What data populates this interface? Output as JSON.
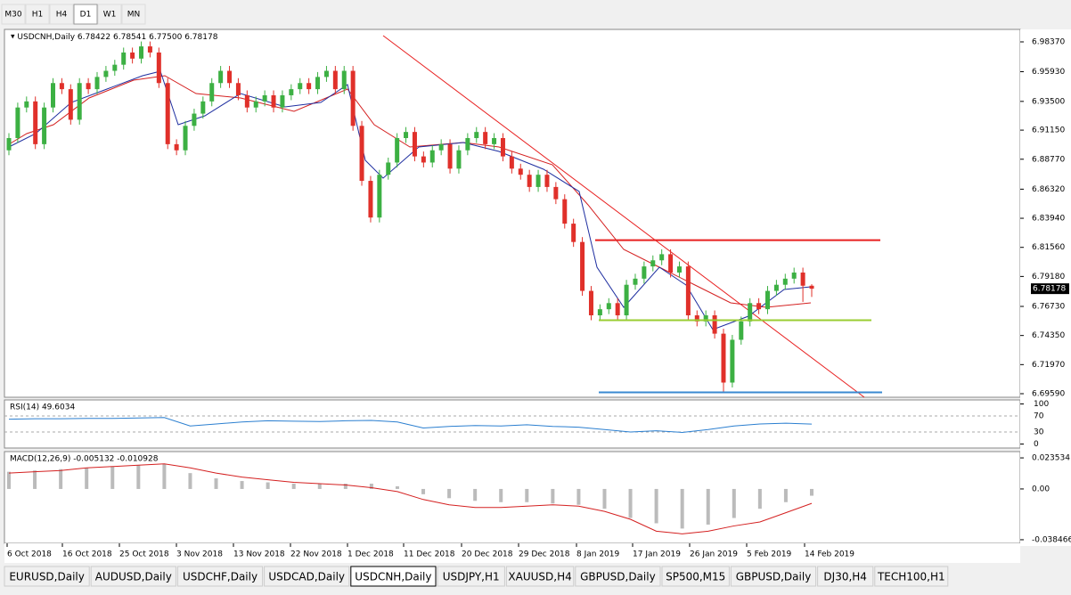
{
  "toolbar": {
    "timeframes": [
      "M30",
      "H1",
      "H4",
      "D1",
      "W1",
      "MN"
    ],
    "active": "D1"
  },
  "chart": {
    "header": {
      "symbol": "USDCNH,Daily",
      "ohlc": [
        "6.78422",
        "6.78541",
        "6.77500",
        "6.78178"
      ]
    },
    "ylim": [
      6.69298,
      6.9939
    ],
    "yticks": [
      {
        "value": 6.9837,
        "label": "6.98370"
      },
      {
        "value": 6.9593,
        "label": "6.95930"
      },
      {
        "value": 6.935,
        "label": "6.93500"
      },
      {
        "value": 6.9115,
        "label": "6.91150"
      },
      {
        "value": 6.8877,
        "label": "6.88770"
      },
      {
        "value": 6.8632,
        "label": "6.86320"
      },
      {
        "value": 6.8394,
        "label": "6.83940"
      },
      {
        "value": 6.8156,
        "label": "6.81560"
      },
      {
        "value": 6.7918,
        "label": "6.79180"
      },
      {
        "value": 6.7673,
        "label": "6.76730"
      },
      {
        "value": 6.7435,
        "label": "6.74350"
      },
      {
        "value": 6.7197,
        "label": "6.71970"
      },
      {
        "value": 6.6959,
        "label": "6.69590"
      }
    ],
    "current_price": 6.78178,
    "bull_color": "#3cb043",
    "bear_color": "#e0302a",
    "candles": {
      "open": [
        6.895,
        6.905,
        6.93,
        6.935,
        6.9,
        6.93,
        6.95,
        6.945,
        6.92,
        6.95,
        6.945,
        6.955,
        6.96,
        6.965,
        6.975,
        6.97,
        6.98,
        6.975,
        6.95,
        6.9,
        6.895,
        6.915,
        6.925,
        6.935,
        6.95,
        6.96,
        6.95,
        6.94,
        6.93,
        6.935,
        6.94,
        6.93,
        6.94,
        6.945,
        6.95,
        6.945,
        6.955,
        6.96,
        6.945,
        6.96,
        6.915,
        6.87,
        6.84,
        6.875,
        6.885,
        6.905,
        6.91,
        6.89,
        6.885,
        6.895,
        6.9,
        6.88,
        6.895,
        6.905,
        6.91,
        6.9,
        6.905,
        6.89,
        6.88,
        6.875,
        6.865,
        6.875,
        6.865,
        6.855,
        6.835,
        6.82,
        6.78,
        6.76,
        6.765,
        6.77,
        6.76,
        6.785,
        6.79,
        6.8,
        6.805,
        6.81,
        6.795,
        6.8,
        6.76,
        6.755,
        6.76,
        6.745,
        6.705,
        6.74,
        6.755,
        6.77,
        6.765,
        6.78,
        6.785,
        6.79,
        6.795,
        6.78422
      ],
      "high": [
        6.909,
        6.934,
        6.939,
        6.939,
        6.934,
        6.954,
        6.954,
        6.949,
        6.954,
        6.954,
        6.959,
        6.964,
        6.969,
        6.979,
        6.979,
        6.984,
        6.984,
        6.979,
        6.954,
        6.904,
        6.919,
        6.929,
        6.939,
        6.954,
        6.964,
        6.964,
        6.954,
        6.944,
        6.939,
        6.944,
        6.944,
        6.944,
        6.949,
        6.954,
        6.954,
        6.959,
        6.964,
        6.964,
        6.964,
        6.964,
        6.919,
        6.874,
        6.879,
        6.889,
        6.909,
        6.914,
        6.914,
        6.894,
        6.899,
        6.904,
        6.904,
        6.899,
        6.909,
        6.914,
        6.914,
        6.909,
        6.909,
        6.894,
        6.884,
        6.879,
        6.879,
        6.879,
        6.869,
        6.859,
        6.839,
        6.824,
        6.784,
        6.769,
        6.774,
        6.774,
        6.789,
        6.794,
        6.804,
        6.809,
        6.814,
        6.814,
        6.804,
        6.804,
        6.764,
        6.764,
        6.764,
        6.749,
        6.744,
        6.759,
        6.774,
        6.774,
        6.784,
        6.789,
        6.794,
        6.799,
        6.799,
        6.78541
      ],
      "low": [
        6.891,
        6.901,
        6.926,
        6.896,
        6.896,
        6.926,
        6.941,
        6.916,
        6.916,
        6.941,
        6.941,
        6.951,
        6.956,
        6.961,
        6.966,
        6.966,
        6.971,
        6.946,
        6.896,
        6.891,
        6.891,
        6.911,
        6.921,
        6.931,
        6.946,
        6.946,
        6.936,
        6.926,
        6.926,
        6.931,
        6.926,
        6.926,
        6.936,
        6.941,
        6.941,
        6.941,
        6.951,
        6.941,
        6.941,
        6.911,
        6.866,
        6.836,
        6.836,
        6.871,
        6.881,
        6.901,
        6.886,
        6.881,
        6.881,
        6.891,
        6.876,
        6.876,
        6.891,
        6.901,
        6.896,
        6.896,
        6.886,
        6.876,
        6.871,
        6.861,
        6.861,
        6.861,
        6.851,
        6.831,
        6.816,
        6.776,
        6.756,
        6.756,
        6.761,
        6.756,
        6.756,
        6.781,
        6.786,
        6.796,
        6.801,
        6.791,
        6.791,
        6.756,
        6.751,
        6.751,
        6.741,
        6.697,
        6.701,
        6.736,
        6.751,
        6.761,
        6.761,
        6.776,
        6.781,
        6.786,
        6.771,
        6.775
      ],
      "close": [
        6.905,
        6.93,
        6.935,
        6.9,
        6.93,
        6.95,
        6.945,
        6.92,
        6.95,
        6.945,
        6.955,
        6.96,
        6.965,
        6.975,
        6.97,
        6.98,
        6.975,
        6.95,
        6.9,
        6.895,
        6.915,
        6.925,
        6.935,
        6.95,
        6.96,
        6.95,
        6.94,
        6.93,
        6.935,
        6.94,
        6.93,
        6.94,
        6.945,
        6.95,
        6.945,
        6.955,
        6.96,
        6.945,
        6.96,
        6.915,
        6.87,
        6.84,
        6.875,
        6.885,
        6.905,
        6.91,
        6.89,
        6.885,
        6.895,
        6.9,
        6.88,
        6.895,
        6.905,
        6.91,
        6.9,
        6.905,
        6.89,
        6.88,
        6.875,
        6.865,
        6.875,
        6.865,
        6.855,
        6.835,
        6.82,
        6.78,
        6.76,
        6.765,
        6.77,
        6.76,
        6.785,
        6.79,
        6.8,
        6.805,
        6.81,
        6.795,
        6.8,
        6.76,
        6.755,
        6.76,
        6.745,
        6.705,
        6.74,
        6.755,
        6.77,
        6.765,
        6.78,
        6.785,
        6.79,
        6.795,
        6.78422,
        6.78178
      ]
    },
    "levels": [
      {
        "value": 6.8215,
        "color": "#e82020"
      },
      {
        "value": 6.756,
        "color": "#9acd32"
      },
      {
        "value": 6.697,
        "color": "#3a8ad0"
      }
    ],
    "dates": [
      "6 Oct 2018",
      "16 Oct 2018",
      "25 Oct 2018",
      "3 Nov 2018",
      "13 Nov 2018",
      "22 Nov 2018",
      "1 Dec 2018",
      "11 Dec 2018",
      "20 Dec 2018",
      "29 Dec 2018",
      "8 Jan 2019",
      "17 Jan 2019",
      "26 Jan 2019",
      "5 Feb 2019",
      "14 Feb 2019"
    ]
  },
  "rsi": {
    "label": "RSI(14) 49.6034",
    "ylim": [
      -10,
      110
    ],
    "yticks": [
      100,
      70,
      30,
      0
    ],
    "color": "#2b7fd0",
    "values": [
      62,
      63,
      63,
      64,
      64,
      65,
      66,
      45,
      50,
      55,
      58,
      57,
      56,
      58,
      59,
      55,
      40,
      44,
      46,
      45,
      48,
      44,
      42,
      36,
      30,
      33,
      29,
      36,
      45,
      50,
      52,
      49.6034
    ]
  },
  "macd": {
    "label": "MACD(12,26,9) -0.005132 -0.010928",
    "ylim": [
      -0.0412,
      0.0283
    ],
    "yticks": [
      0.023534,
      {
        "value": 0,
        "label": "0.00"
      },
      -0.038466
    ],
    "histogram": [
      0.013,
      0.014,
      0.015,
      0.016,
      0.017,
      0.018,
      0.019,
      0.012,
      0.008,
      0.006,
      0.005,
      0.004,
      0.004,
      0.004,
      0.004,
      0.002,
      -0.004,
      -0.007,
      -0.009,
      -0.01,
      -0.01,
      -0.011,
      -0.012,
      -0.015,
      -0.022,
      -0.026,
      -0.03,
      -0.027,
      -0.022,
      -0.015,
      -0.01,
      -0.005132
    ],
    "signal": [
      0.012,
      0.013,
      0.014,
      0.016,
      0.017,
      0.018,
      0.019,
      0.016,
      0.012,
      0.009,
      0.007,
      0.005,
      0.004,
      0.003,
      0.001,
      -0.002,
      -0.008,
      -0.012,
      -0.014,
      -0.014,
      -0.013,
      -0.012,
      -0.013,
      -0.017,
      -0.023,
      -0.032,
      -0.034,
      -0.032,
      -0.028,
      -0.025,
      -0.018,
      -0.010928
    ]
  },
  "tabs": [
    "EURUSD,Daily",
    "AUDUSD,Daily",
    "USDCHF,Daily",
    "USDCAD,Daily",
    "USDCNH,Daily",
    "USDJPY,H1",
    "XAUUSD,H4",
    "GBPUSD,Daily",
    "SP500,M15",
    "GBPUSD,Daily",
    "DJ30,H4",
    "TECH100,H1"
  ],
  "active_tab": 4
}
